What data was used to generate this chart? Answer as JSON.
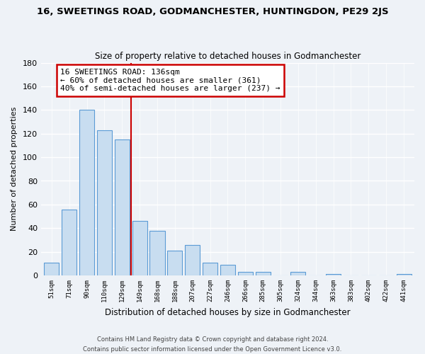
{
  "title": "16, SWEETINGS ROAD, GODMANCHESTER, HUNTINGDON, PE29 2JS",
  "subtitle": "Size of property relative to detached houses in Godmanchester",
  "xlabel": "Distribution of detached houses by size in Godmanchester",
  "ylabel": "Number of detached properties",
  "bar_labels": [
    "51sqm",
    "71sqm",
    "90sqm",
    "110sqm",
    "129sqm",
    "149sqm",
    "168sqm",
    "188sqm",
    "207sqm",
    "227sqm",
    "246sqm",
    "266sqm",
    "285sqm",
    "305sqm",
    "324sqm",
    "344sqm",
    "363sqm",
    "383sqm",
    "402sqm",
    "422sqm",
    "441sqm"
  ],
  "bar_values": [
    11,
    56,
    140,
    123,
    115,
    46,
    38,
    21,
    26,
    11,
    9,
    3,
    3,
    0,
    3,
    0,
    1,
    0,
    0,
    0,
    1
  ],
  "bar_color": "#c8ddf0",
  "bar_edge_color": "#5b9bd5",
  "red_line_x": 4.5,
  "annotation_text_line1": "16 SWEETINGS ROAD: 136sqm",
  "annotation_text_line2": "← 60% of detached houses are smaller (361)",
  "annotation_text_line3": "40% of semi-detached houses are larger (237) →",
  "annotation_box_color": "#ffffff",
  "annotation_box_edge": "#cc0000",
  "ylim": [
    0,
    180
  ],
  "yticks": [
    0,
    20,
    40,
    60,
    80,
    100,
    120,
    140,
    160,
    180
  ],
  "footer_line1": "Contains HM Land Registry data © Crown copyright and database right 2024.",
  "footer_line2": "Contains public sector information licensed under the Open Government Licence v3.0.",
  "bg_color": "#eef2f7",
  "grid_color": "#ffffff",
  "title_fontsize": 9.5,
  "subtitle_fontsize": 8.5
}
